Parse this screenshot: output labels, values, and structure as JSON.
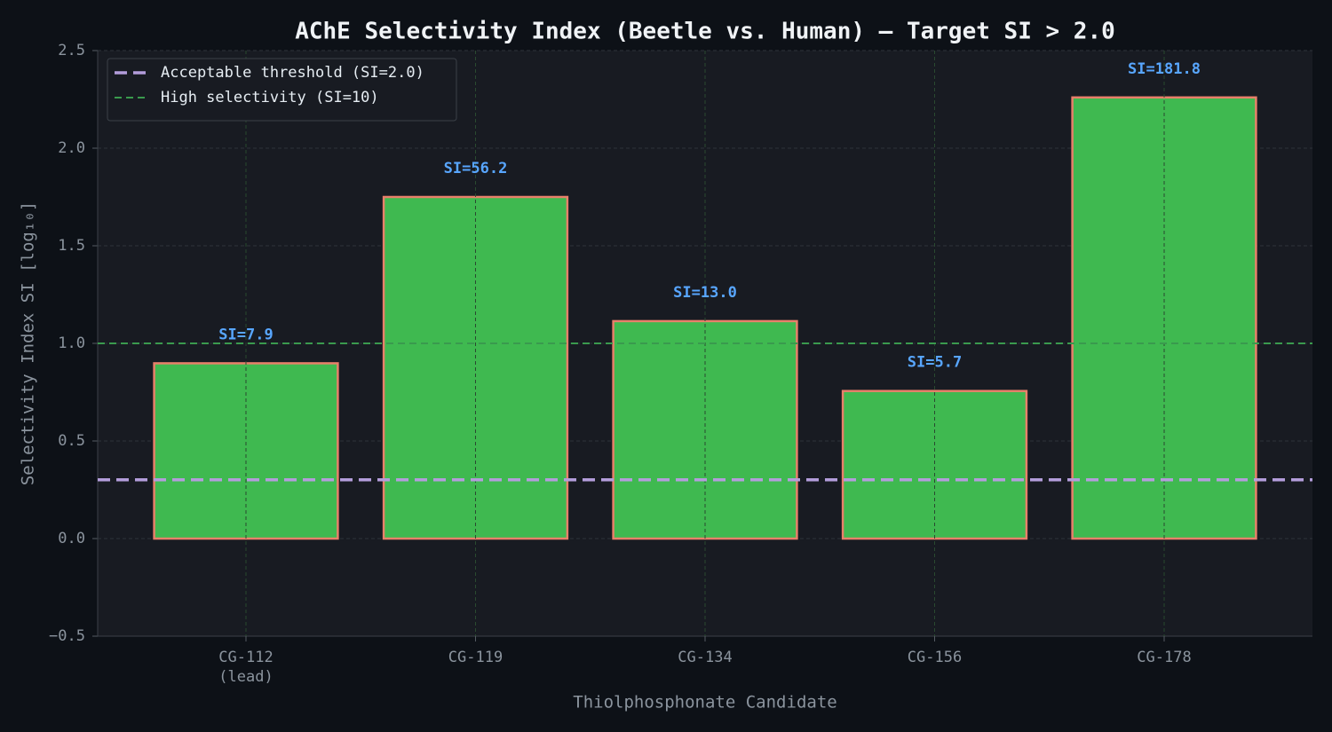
{
  "chart_data": {
    "type": "bar",
    "title": "AChE Selectivity Index (Beetle vs. Human) — Target SI > 2.0",
    "x_label": "Thiolphosphonate Candidate",
    "y_label": "Selectivity Index SI [log₁₀]",
    "categories": [
      "CG-112\n(lead)",
      "CG-119",
      "CG-134",
      "CG-156",
      "CG-178"
    ],
    "values": [
      0.898,
      1.75,
      1.114,
      0.756,
      2.26
    ],
    "value_labels": [
      "SI=7.9",
      "SI=56.2",
      "SI=13.0",
      "SI=5.7",
      "SI=181.8"
    ],
    "color": "#3fb950",
    "edge_color": "#e8806a",
    "label_color": "#58a6ff",
    "ylim": [
      -0.5,
      2.5
    ],
    "yticks": [
      {
        "value": -0.5,
        "label": "−0.5"
      },
      {
        "value": 0,
        "label": "0.0"
      },
      0.5,
      {
        "value": 1,
        "label": "1.0"
      },
      1.5,
      {
        "value": 2,
        "label": "2.0"
      },
      2.5
    ],
    "grid": true,
    "legend": "upper left",
    "reference_lines": [
      {
        "name": "Acceptable threshold (SI=2.0)",
        "value": 0.301,
        "color": "#b39ddb",
        "style": "dashed-thick"
      },
      {
        "name": "High selectivity (SI=10)",
        "value": 1,
        "color": "#3a9a4e",
        "style": "dashed"
      }
    ]
  }
}
